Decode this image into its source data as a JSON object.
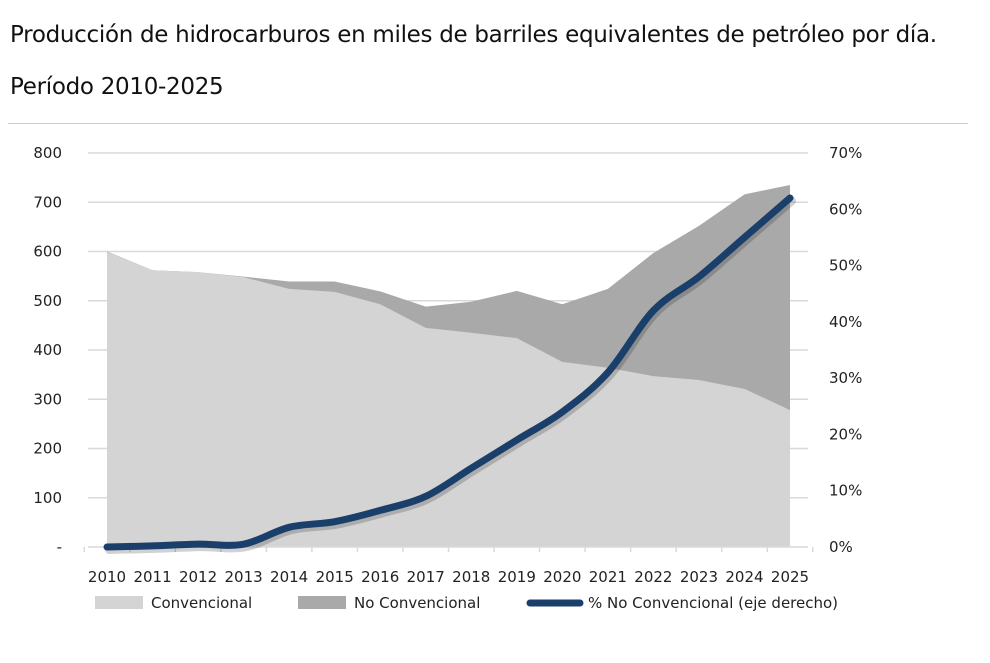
{
  "chart_data": {
    "type": "area",
    "title": "Producción de hidrocarburos en miles de barriles equivalentes de petróleo por día.",
    "subtitle": "Período 2010-2025",
    "categories": [
      "2010",
      "2011",
      "2012",
      "2013",
      "2014",
      "2015",
      "2016",
      "2017",
      "2018",
      "2019",
      "2020",
      "2021",
      "2022",
      "2023",
      "2024",
      "2025"
    ],
    "series": [
      {
        "name": "Convencional",
        "type": "stacked-area",
        "axis": "left",
        "color": "#d4d4d4",
        "values": [
          599,
          562,
          558,
          548,
          524,
          518,
          493,
          445,
          435,
          424,
          376,
          364,
          347,
          339,
          321,
          278
        ]
      },
      {
        "name": "No Convencional",
        "type": "stacked-area",
        "axis": "left",
        "color": "#a9a9a9",
        "values": [
          1,
          0,
          0,
          1,
          15,
          21,
          26,
          43,
          63,
          96,
          117,
          160,
          250,
          313,
          395,
          457
        ]
      },
      {
        "name": "% No Convencional (eje derecho)",
        "type": "line",
        "axis": "right",
        "color": "#1b3f6b",
        "values": [
          0,
          0.2,
          0.5,
          0.5,
          3.5,
          4.5,
          6.5,
          9,
          14,
          19,
          24,
          31,
          42,
          48,
          55,
          62
        ]
      }
    ],
    "left_axis": {
      "range": [
        0,
        800
      ],
      "ticks": [
        "-",
        "100",
        "200",
        "300",
        "400",
        "500",
        "600",
        "700",
        "800"
      ]
    },
    "right_axis": {
      "range": [
        0,
        70
      ],
      "ticks": [
        "0%",
        "10%",
        "20%",
        "30%",
        "40%",
        "50%",
        "60%",
        "70%"
      ]
    },
    "grid": true,
    "legend_position": "bottom"
  }
}
